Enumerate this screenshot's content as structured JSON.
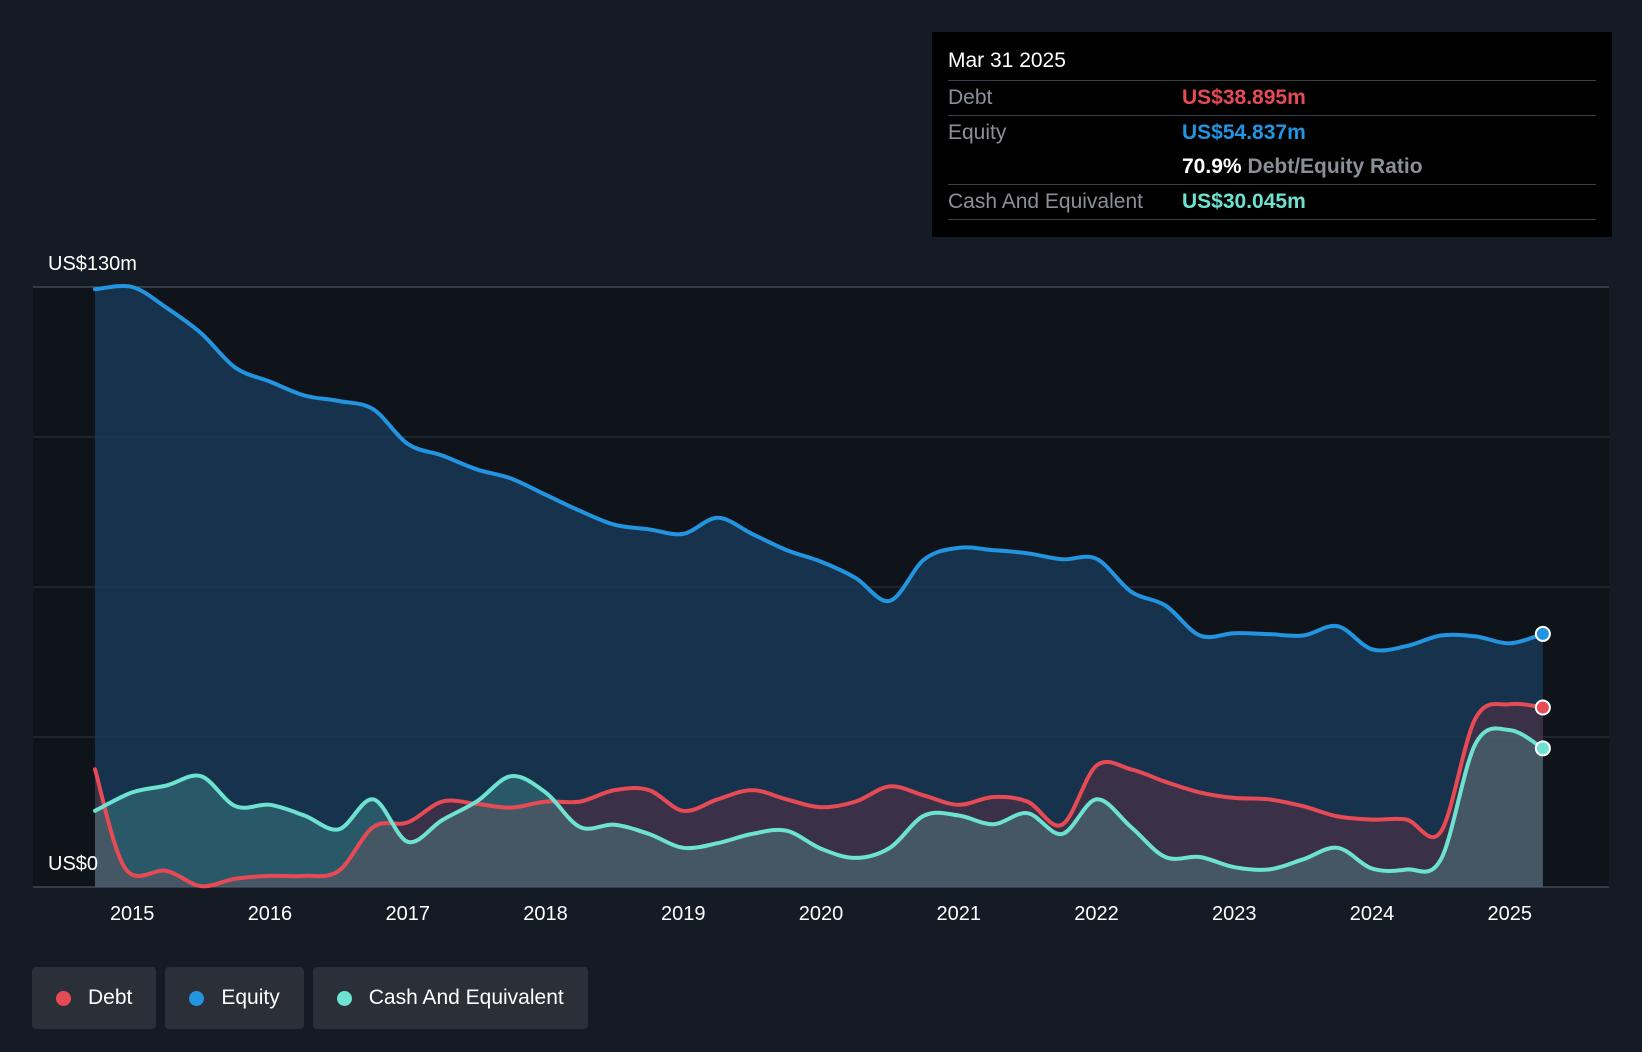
{
  "chart_data": {
    "type": "area",
    "y_top_label": "US$130m",
    "y_bottom_label": "US$0",
    "ylim": [
      0,
      130
    ],
    "x_ticks": [
      "2015",
      "2016",
      "2017",
      "2018",
      "2019",
      "2020",
      "2021",
      "2022",
      "2023",
      "2024",
      "2025"
    ],
    "x_tick_values": [
      2015,
      2016,
      2017,
      2018,
      2019,
      2020,
      2021,
      2022,
      2023,
      2024,
      2025
    ],
    "xlim": [
      2014.28,
      2025.72
    ],
    "series": [
      {
        "name": "Equity",
        "color": "#2394df",
        "points": [
          [
            2014.73,
            129.5
          ],
          [
            2015.0,
            130
          ],
          [
            2015.25,
            125.5
          ],
          [
            2015.5,
            120
          ],
          [
            2015.75,
            112.5
          ],
          [
            2016.0,
            109.5
          ],
          [
            2016.25,
            106.5
          ],
          [
            2016.5,
            105.3
          ],
          [
            2016.75,
            103.5
          ],
          [
            2017.0,
            96
          ],
          [
            2017.25,
            93.5
          ],
          [
            2017.5,
            90.5
          ],
          [
            2017.75,
            88.5
          ],
          [
            2018.0,
            85
          ],
          [
            2018.25,
            81.5
          ],
          [
            2018.5,
            78.5
          ],
          [
            2018.75,
            77.5
          ],
          [
            2019.0,
            76.5
          ],
          [
            2019.25,
            80
          ],
          [
            2019.5,
            76.5
          ],
          [
            2019.75,
            73
          ],
          [
            2020.0,
            70.5
          ],
          [
            2020.25,
            67
          ],
          [
            2020.5,
            62
          ],
          [
            2020.75,
            71
          ],
          [
            2021.0,
            73.5
          ],
          [
            2021.25,
            73
          ],
          [
            2021.5,
            72.3
          ],
          [
            2021.75,
            71
          ],
          [
            2022.0,
            71.1
          ],
          [
            2022.25,
            64
          ],
          [
            2022.5,
            61
          ],
          [
            2022.75,
            54.5
          ],
          [
            2023.0,
            55
          ],
          [
            2023.25,
            54.8
          ],
          [
            2023.5,
            54.5
          ],
          [
            2023.75,
            56.5
          ],
          [
            2024.0,
            51.5
          ],
          [
            2024.25,
            52.2
          ],
          [
            2024.5,
            54.5
          ],
          [
            2024.75,
            54.3
          ],
          [
            2025.0,
            52.8
          ],
          [
            2025.24,
            54.837
          ]
        ]
      },
      {
        "name": "Debt",
        "color": "#e64b55",
        "points": [
          [
            2014.73,
            25.5
          ],
          [
            2014.95,
            4
          ],
          [
            2015.25,
            3.5
          ],
          [
            2015.5,
            0.2
          ],
          [
            2015.75,
            1.8
          ],
          [
            2016.0,
            2.4
          ],
          [
            2016.25,
            2.4
          ],
          [
            2016.5,
            3.5
          ],
          [
            2016.75,
            13
          ],
          [
            2017.0,
            14
          ],
          [
            2017.25,
            18.5
          ],
          [
            2017.5,
            18
          ],
          [
            2017.75,
            17.2
          ],
          [
            2018.0,
            18.5
          ],
          [
            2018.25,
            18.5
          ],
          [
            2018.5,
            21
          ],
          [
            2018.75,
            21
          ],
          [
            2019.0,
            16.5
          ],
          [
            2019.25,
            19
          ],
          [
            2019.5,
            21
          ],
          [
            2019.75,
            19
          ],
          [
            2020.0,
            17.3
          ],
          [
            2020.25,
            18.5
          ],
          [
            2020.5,
            21.8
          ],
          [
            2020.75,
            19.8
          ],
          [
            2021.0,
            17.8
          ],
          [
            2021.25,
            19.5
          ],
          [
            2021.5,
            18.5
          ],
          [
            2021.75,
            13.5
          ],
          [
            2022.0,
            26.3
          ],
          [
            2022.25,
            25.5
          ],
          [
            2022.5,
            22.8
          ],
          [
            2022.75,
            20.5
          ],
          [
            2023.0,
            19.3
          ],
          [
            2023.25,
            19
          ],
          [
            2023.5,
            17.5
          ],
          [
            2023.75,
            15.3
          ],
          [
            2024.0,
            14.6
          ],
          [
            2024.25,
            14.6
          ],
          [
            2024.5,
            12
          ],
          [
            2024.75,
            36.5
          ],
          [
            2025.0,
            39.6
          ],
          [
            2025.24,
            38.895
          ]
        ]
      },
      {
        "name": "Cash And Equivalent",
        "color": "#6de2d0",
        "points": [
          [
            2014.73,
            16.5
          ],
          [
            2015.0,
            20.5
          ],
          [
            2015.25,
            22
          ],
          [
            2015.5,
            24
          ],
          [
            2015.75,
            17.5
          ],
          [
            2016.0,
            17.8
          ],
          [
            2016.25,
            15.5
          ],
          [
            2016.5,
            12.5
          ],
          [
            2016.75,
            19
          ],
          [
            2017.0,
            9.8
          ],
          [
            2017.25,
            14.5
          ],
          [
            2017.5,
            18.5
          ],
          [
            2017.75,
            24
          ],
          [
            2018.0,
            20.5
          ],
          [
            2018.25,
            13
          ],
          [
            2018.5,
            13.5
          ],
          [
            2018.75,
            11.5
          ],
          [
            2019.0,
            8.5
          ],
          [
            2019.25,
            9.5
          ],
          [
            2019.5,
            11.5
          ],
          [
            2019.75,
            12.2
          ],
          [
            2020.0,
            8.3
          ],
          [
            2020.25,
            6.3
          ],
          [
            2020.5,
            8.5
          ],
          [
            2020.75,
            15.5
          ],
          [
            2021.0,
            15.5
          ],
          [
            2021.25,
            13.6
          ],
          [
            2021.5,
            16
          ],
          [
            2021.75,
            11.5
          ],
          [
            2022.0,
            19
          ],
          [
            2022.25,
            13
          ],
          [
            2022.5,
            6.5
          ],
          [
            2022.75,
            6.5
          ],
          [
            2023.0,
            4.3
          ],
          [
            2023.25,
            3.8
          ],
          [
            2023.5,
            6
          ],
          [
            2023.75,
            8.5
          ],
          [
            2024.0,
            4
          ],
          [
            2024.25,
            3.8
          ],
          [
            2024.5,
            6
          ],
          [
            2024.75,
            31
          ],
          [
            2025.0,
            34
          ],
          [
            2025.24,
            30.045
          ]
        ]
      }
    ]
  },
  "tooltip": {
    "date": "Mar 31 2025",
    "debt_label": "Debt",
    "debt_value": "US$38.895m",
    "equity_label": "Equity",
    "equity_value": "US$54.837m",
    "ratio_value": "70.9%",
    "ratio_label": "Debt/Equity Ratio",
    "cash_label": "Cash And Equivalent",
    "cash_value": "US$30.045m"
  },
  "legend": {
    "items": [
      {
        "label": "Debt",
        "color": "#e64b55"
      },
      {
        "label": "Equity",
        "color": "#2394df"
      },
      {
        "label": "Cash And Equivalent",
        "color": "#6de2d0"
      }
    ]
  }
}
